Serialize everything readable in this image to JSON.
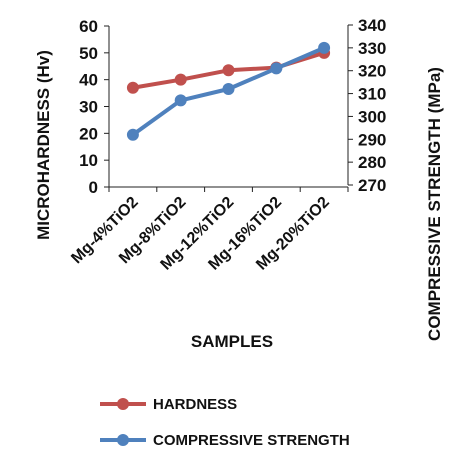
{
  "chart_data": {
    "type": "line",
    "categories": [
      "Mg-4%TiO2",
      "Mg-8%TiO2",
      "Mg-12%TiO2",
      "Mg-16%TiO2",
      "Mg-20%TiO2"
    ],
    "series": [
      {
        "name": "HARDNESS",
        "axis": "left",
        "color": "#c0504d",
        "values": [
          37,
          40,
          43.5,
          44.5,
          50
        ]
      },
      {
        "name": "COMPRESSIVE STRENGTH",
        "axis": "right",
        "color": "#4f81bd",
        "values": [
          292,
          307,
          312,
          321,
          330
        ]
      }
    ],
    "xlabel": "SAMPLES",
    "ylabel": "MICROHARDNESS (Hv)",
    "y2label": "COMPRESSIVE STRENGTH (MPa)",
    "ylim": [
      0,
      60
    ],
    "y2lim": [
      270,
      340
    ],
    "yticks": [
      0,
      10,
      20,
      30,
      40,
      50,
      60
    ],
    "y2ticks": [
      270,
      280,
      290,
      300,
      310,
      320,
      330,
      340
    ],
    "grid": false,
    "legend": "bottom"
  }
}
